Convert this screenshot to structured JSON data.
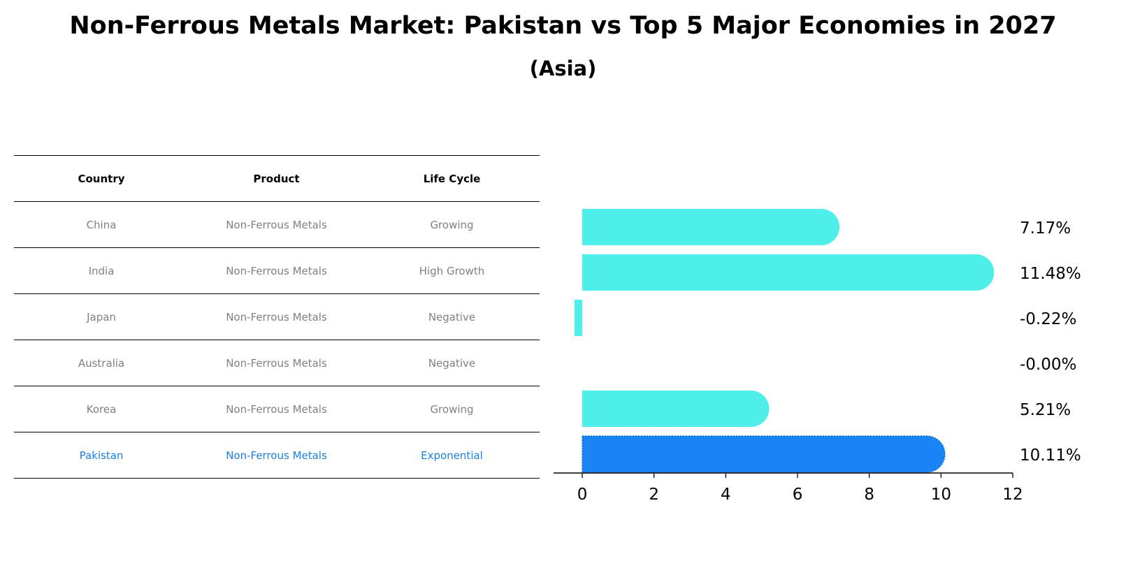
{
  "title": "Non-Ferrous Metals Market: Pakistan vs Top 5 Major Economies in 2027",
  "subtitle": "(Asia)",
  "table": {
    "headers": [
      "Country",
      "Product",
      "Life Cycle"
    ],
    "rows": [
      {
        "country": "China",
        "product": "Non-Ferrous Metals",
        "life_cycle": "Growing"
      },
      {
        "country": "India",
        "product": "Non-Ferrous Metals",
        "life_cycle": "High Growth"
      },
      {
        "country": "Japan",
        "product": "Non-Ferrous Metals",
        "life_cycle": "Negative"
      },
      {
        "country": "Australia",
        "product": "Non-Ferrous Metals",
        "life_cycle": "Negative"
      },
      {
        "country": "Korea",
        "product": "Non-Ferrous Metals",
        "life_cycle": "Growing"
      },
      {
        "country": "Pakistan",
        "product": "Non-Ferrous Metals",
        "life_cycle": "Exponential"
      }
    ]
  },
  "colors": {
    "bar": "#4eeeea",
    "highlight_bar": "#1a84f5",
    "highlight_text": "#1a80e0",
    "muted_text": "#808080"
  },
  "chart_data": {
    "type": "bar",
    "orientation": "horizontal",
    "categories": [
      "China",
      "India",
      "Japan",
      "Australia",
      "Korea",
      "Pakistan"
    ],
    "values": [
      7.17,
      11.48,
      -0.22,
      -0.0,
      5.21,
      10.11
    ],
    "value_labels": [
      "7.17%",
      "11.48%",
      "-0.22%",
      "-0.00%",
      "5.21%",
      "10.11%"
    ],
    "highlight": "Pakistan",
    "xlim": [
      -0.8,
      12
    ],
    "xticks": [
      0,
      2,
      4,
      6,
      8,
      10,
      12
    ],
    "xlabel": "",
    "ylabel": "",
    "grid": false
  }
}
